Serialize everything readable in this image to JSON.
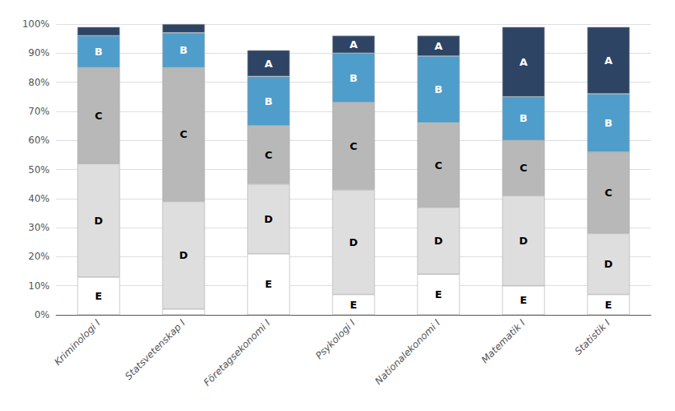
{
  "chart_data": {
    "type": "bar",
    "stacked": true,
    "grid": true,
    "categories": [
      "Kriminologi I",
      "Statsvetenskap I",
      "Företagsekonomi I",
      "Psykologi I",
      "Nationalekonomi I",
      "Matematik I",
      "Statistik I"
    ],
    "series": [
      {
        "name": "E",
        "color": "#ffffff",
        "values": [
          13,
          2,
          21,
          7,
          14,
          10,
          7
        ],
        "value_labels": [
          "E",
          null,
          "E",
          "E",
          "E",
          "E",
          "E"
        ]
      },
      {
        "name": "D",
        "color": "#dedede",
        "values": [
          39,
          37,
          24,
          36,
          23,
          31,
          21
        ],
        "value_labels": [
          "D",
          "D",
          "D",
          "D",
          "D",
          "D",
          "D"
        ]
      },
      {
        "name": "C",
        "color": "#b8b8b8",
        "values": [
          33,
          46,
          20,
          30,
          29,
          19,
          28
        ],
        "value_labels": [
          "C",
          "C",
          "C",
          "C",
          "C",
          "C",
          "C"
        ]
      },
      {
        "name": "B",
        "color": "#4f9dca",
        "values": [
          11,
          12,
          17,
          17,
          23,
          15,
          20
        ],
        "value_labels": [
          "B",
          "B",
          "B",
          "B",
          "B",
          "B",
          "B"
        ]
      },
      {
        "name": "A",
        "color": "#2e4464",
        "values": [
          3,
          3,
          9,
          6,
          7,
          24,
          23
        ],
        "value_labels": [
          null,
          null,
          "A",
          "A",
          "A",
          "A",
          "A"
        ]
      }
    ],
    "ylim": [
      0,
      100
    ],
    "yticks": [
      {
        "value": 0,
        "label": "0%"
      },
      {
        "value": 10,
        "label": "10%"
      },
      {
        "value": 20,
        "label": "20%"
      },
      {
        "value": 30,
        "label": "30%"
      },
      {
        "value": 40,
        "label": "40%"
      },
      {
        "value": 50,
        "label": "50%"
      },
      {
        "value": 60,
        "label": "60%"
      },
      {
        "value": 70,
        "label": "70%"
      },
      {
        "value": 80,
        "label": "80%"
      },
      {
        "value": 90,
        "label": "90%"
      },
      {
        "value": 100,
        "label": "100%"
      }
    ]
  }
}
